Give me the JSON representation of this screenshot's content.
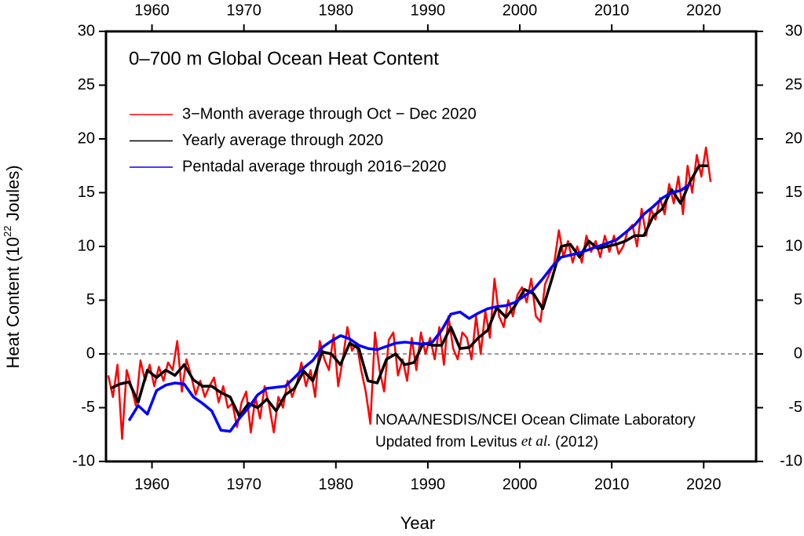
{
  "chart_data": {
    "type": "line",
    "title": "0–700 m Global Ocean Heat Content",
    "xlabel": "Year",
    "ylabel": [
      "Heat Content (10",
      "22",
      " Joules)"
    ],
    "annotation": [
      "NOAA/NESDIS/NCEI Ocean Climate Laboratory",
      "Updated from Levitus ",
      "et al.",
      " (2012)"
    ],
    "xlim": [
      1955,
      2025.7
    ],
    "ylim": [
      -10,
      30
    ],
    "xticks": [
      1960,
      1970,
      1980,
      1990,
      2000,
      2010,
      2020
    ],
    "yticks": [
      -10,
      -5,
      0,
      5,
      10,
      15,
      20,
      25,
      30
    ],
    "hline": 0,
    "legend": "top-left",
    "series": [
      {
        "name": "3−Month average through Oct − Dec 2020",
        "color": "#ff0000",
        "x": [
          1955.25,
          1955.75,
          1956.25,
          1956.75,
          1957.25,
          1957.75,
          1958.25,
          1958.75,
          1959.25,
          1959.75,
          1960.25,
          1960.75,
          1961.25,
          1961.75,
          1962.25,
          1962.75,
          1963.25,
          1963.75,
          1964.25,
          1964.75,
          1965.25,
          1965.75,
          1966.25,
          1966.75,
          1967.25,
          1967.75,
          1968.25,
          1968.75,
          1969.25,
          1969.75,
          1970.25,
          1970.75,
          1971.25,
          1971.75,
          1972.25,
          1972.75,
          1973.25,
          1973.75,
          1974.25,
          1974.75,
          1975.25,
          1975.75,
          1976.25,
          1976.75,
          1977.25,
          1977.75,
          1978.25,
          1978.75,
          1979.25,
          1979.75,
          1980.25,
          1980.75,
          1981.25,
          1981.75,
          1982.25,
          1982.75,
          1983.25,
          1983.75,
          1984.25,
          1984.75,
          1985.25,
          1985.75,
          1986.25,
          1986.75,
          1987.25,
          1987.75,
          1988.25,
          1988.75,
          1989.25,
          1989.75,
          1990.25,
          1990.75,
          1991.25,
          1991.75,
          1992.25,
          1992.75,
          1993.25,
          1993.75,
          1994.25,
          1994.75,
          1995.25,
          1995.75,
          1996.25,
          1996.75,
          1997.25,
          1997.75,
          1998.25,
          1998.75,
          1999.25,
          1999.75,
          2000.25,
          2000.75,
          2001.25,
          2001.75,
          2002.25,
          2002.75,
          2003.25,
          2003.75,
          2004.25,
          2004.75,
          2005.25,
          2005.75,
          2006.25,
          2006.75,
          2007.25,
          2007.75,
          2008.25,
          2008.75,
          2009.25,
          2009.75,
          2010.25,
          2010.75,
          2011.25,
          2011.75,
          2012.25,
          2012.75,
          2013.25,
          2013.75,
          2014.25,
          2014.75,
          2015.25,
          2015.75,
          2016.25,
          2016.75,
          2017.25,
          2017.75,
          2018.25,
          2018.75,
          2019.25,
          2019.75,
          2020.25,
          2020.75
        ],
        "values": [
          -2.0,
          -4.0,
          -1.0,
          -7.9,
          -1.5,
          -3.0,
          -4.8,
          -0.6,
          -2.5,
          -1.0,
          -3.0,
          -1.2,
          -2.5,
          -0.8,
          -1.5,
          1.2,
          -3.5,
          -0.5,
          -2.0,
          -3.8,
          -2.5,
          -4.0,
          -3.0,
          -2.2,
          -4.5,
          -3.0,
          -5.0,
          -4.6,
          -6.8,
          -4.5,
          -3.5,
          -7.3,
          -4.0,
          -6.0,
          -3.0,
          -4.8,
          -7.3,
          -4.0,
          -5.0,
          -2.5,
          -4.0,
          -2.8,
          -0.8,
          -3.0,
          -1.5,
          -4.0,
          1.2,
          -0.5,
          -1.5,
          1.8,
          -3.0,
          -0.5,
          2.5,
          0.3,
          1.0,
          -1.5,
          -3.5,
          -6.5,
          2.0,
          -1.5,
          -3.5,
          1.3,
          2.0,
          -2.0,
          -0.5,
          -2.5,
          1.5,
          -1.5,
          2.0,
          0.0,
          1.5,
          -0.5,
          2.5,
          -1.0,
          3.5,
          0.5,
          -0.5,
          2.0,
          1.5,
          -0.5,
          3.5,
          0.0,
          4.0,
          1.5,
          7.0,
          3.5,
          2.5,
          5.0,
          3.5,
          5.5,
          6.2,
          4.8,
          7.0,
          3.5,
          3.0,
          6.5,
          7.5,
          8.5,
          11.5,
          9.0,
          10.5,
          8.5,
          10.0,
          8.5,
          11.0,
          9.5,
          10.5,
          9.0,
          11.0,
          9.5,
          11.0,
          9.3,
          10.0,
          11.5,
          12.0,
          10.0,
          13.5,
          11.0,
          13.5,
          12.5,
          14.5,
          13.0,
          15.8,
          14.0,
          16.5,
          13.0,
          17.5,
          15.0,
          18.5,
          16.5,
          19.2,
          16.0
        ]
      },
      {
        "name": "Yearly average through 2020",
        "color": "#000000",
        "x": [
          1955.5,
          1956.5,
          1957.5,
          1958.5,
          1959.5,
          1960.5,
          1961.5,
          1962.5,
          1963.5,
          1964.5,
          1965.5,
          1966.5,
          1967.5,
          1968.5,
          1969.5,
          1970.5,
          1971.5,
          1972.5,
          1973.5,
          1974.5,
          1975.5,
          1976.5,
          1977.5,
          1978.5,
          1979.5,
          1980.5,
          1981.5,
          1982.5,
          1983.5,
          1984.5,
          1985.5,
          1986.5,
          1987.5,
          1988.5,
          1989.5,
          1990.5,
          1991.5,
          1992.5,
          1993.5,
          1994.5,
          1995.5,
          1996.5,
          1997.5,
          1998.5,
          1999.5,
          2000.5,
          2001.5,
          2002.5,
          2003.5,
          2004.5,
          2005.5,
          2006.5,
          2007.5,
          2008.5,
          2009.5,
          2010.5,
          2011.5,
          2012.5,
          2013.5,
          2014.5,
          2015.5,
          2016.5,
          2017.5,
          2018.5,
          2019.5,
          2020.5
        ],
        "values": [
          -3.2,
          -2.8,
          -2.6,
          -4.5,
          -1.5,
          -2.2,
          -1.5,
          -2.0,
          -1.0,
          -2.4,
          -3.0,
          -3.0,
          -3.6,
          -4.0,
          -5.8,
          -4.6,
          -5.0,
          -4.2,
          -5.3,
          -3.8,
          -3.2,
          -1.6,
          -2.5,
          0.2,
          0.0,
          -1.0,
          1.0,
          0.5,
          -2.5,
          -2.7,
          -0.5,
          0.0,
          -1.0,
          -0.8,
          1.0,
          0.8,
          0.8,
          2.5,
          0.5,
          0.6,
          1.5,
          2.2,
          4.3,
          3.4,
          4.5,
          6.0,
          5.6,
          4.2,
          7.0,
          10.0,
          10.2,
          9.0,
          10.5,
          9.8,
          10.0,
          10.2,
          10.5,
          11.0,
          11.0,
          12.8,
          13.5,
          15.3,
          14.0,
          16.0,
          17.5,
          17.5
        ]
      },
      {
        "name": "Pentadal average through 2016−2020",
        "color": "#0000ff",
        "x": [
          1957.5,
          1958.5,
          1959.5,
          1960.5,
          1961.5,
          1962.5,
          1963.5,
          1964.5,
          1965.5,
          1966.5,
          1967.5,
          1968.5,
          1969.5,
          1970.5,
          1971.5,
          1972.5,
          1973.5,
          1974.5,
          1975.5,
          1976.5,
          1977.5,
          1978.5,
          1979.5,
          1980.5,
          1981.5,
          1982.5,
          1983.5,
          1984.5,
          1985.5,
          1986.5,
          1987.5,
          1988.5,
          1989.5,
          1990.5,
          1991.5,
          1992.5,
          1993.5,
          1994.5,
          1995.5,
          1996.5,
          1997.5,
          1998.5,
          1999.5,
          2000.5,
          2001.5,
          2002.5,
          2003.5,
          2004.5,
          2005.5,
          2006.5,
          2007.5,
          2008.5,
          2009.5,
          2010.5,
          2011.5,
          2012.5,
          2013.5,
          2014.5,
          2015.5,
          2016.5,
          2017.5,
          2018.5
        ],
        "values": [
          -6.2,
          -4.8,
          -5.6,
          -3.4,
          -2.9,
          -2.7,
          -2.8,
          -4.0,
          -4.6,
          -5.3,
          -7.1,
          -7.2,
          -6.0,
          -5.0,
          -3.8,
          -3.2,
          -3.1,
          -3.0,
          -2.2,
          -1.3,
          -0.6,
          0.6,
          1.2,
          1.7,
          1.4,
          0.8,
          0.5,
          0.4,
          0.7,
          1.0,
          1.1,
          1.0,
          0.9,
          1.1,
          2.2,
          3.7,
          3.9,
          3.3,
          3.8,
          4.2,
          4.4,
          4.5,
          4.8,
          5.4,
          6.0,
          7.0,
          8.1,
          9.0,
          9.2,
          9.4,
          9.7,
          10.0,
          10.3,
          10.6,
          11.3,
          12.0,
          13.0,
          13.7,
          14.5,
          15.0,
          15.2,
          15.8
        ]
      }
    ]
  }
}
